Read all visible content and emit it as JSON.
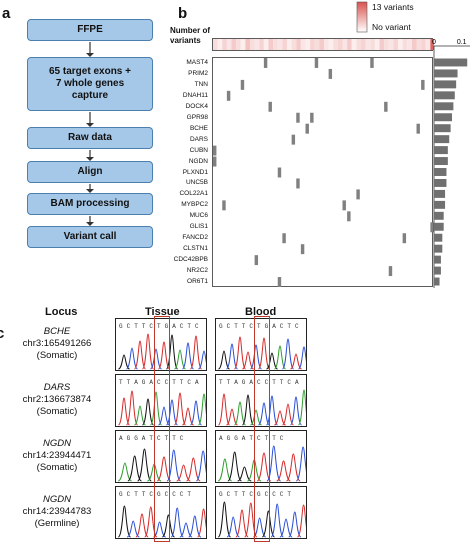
{
  "panels": {
    "a": "a",
    "b": "b",
    "c": "c"
  },
  "flow": {
    "steps": [
      "FFPE",
      "65 target exons +\n7 whole genes\ncapture",
      "Raw data",
      "Align",
      "BAM processing",
      "Variant call"
    ]
  },
  "heatmap_legend": {
    "top_label": "13 variants",
    "bottom_label": "No variant",
    "max_color": "#d9534f",
    "min_color": "#ffffff"
  },
  "number_of_variants_label": "Number of\nvariants",
  "bar_axis": {
    "ticks": [
      "0",
      "0.1"
    ]
  },
  "chart_data": {
    "type": "bar",
    "orientation": "horizontal",
    "categories": [
      "MAST4",
      "PRIM2",
      "TNN",
      "DNAH11",
      "DOCK4",
      "GPR98",
      "BCHE",
      "DARS",
      "CUBN",
      "NGDN",
      "PLXND1",
      "UNC5B",
      "COL22A1",
      "MYBPC2",
      "MUC6",
      "GLIS1",
      "FANCD2",
      "CLSTN1",
      "CDC42BPB",
      "NR2C2",
      "OR6T1"
    ],
    "values": [
      0.12,
      0.085,
      0.08,
      0.075,
      0.07,
      0.065,
      0.06,
      0.055,
      0.05,
      0.05,
      0.045,
      0.045,
      0.04,
      0.04,
      0.035,
      0.035,
      0.03,
      0.03,
      0.025,
      0.025,
      0.02
    ],
    "xlim": [
      0,
      0.13
    ]
  },
  "matrix": {
    "columns": 48,
    "cells": [
      [
        0,
        11
      ],
      [
        0,
        22
      ],
      [
        0,
        34
      ],
      [
        1,
        25
      ],
      [
        2,
        6
      ],
      [
        2,
        45
      ],
      [
        3,
        3
      ],
      [
        4,
        12
      ],
      [
        4,
        37
      ],
      [
        5,
        18
      ],
      [
        5,
        21
      ],
      [
        6,
        20
      ],
      [
        6,
        44
      ],
      [
        7,
        17
      ],
      [
        8,
        0
      ],
      [
        9,
        0
      ],
      [
        10,
        14
      ],
      [
        11,
        18
      ],
      [
        12,
        31
      ],
      [
        13,
        2
      ],
      [
        13,
        28
      ],
      [
        14,
        29
      ],
      [
        15,
        47
      ],
      [
        16,
        15
      ],
      [
        16,
        41
      ],
      [
        17,
        19
      ],
      [
        18,
        9
      ],
      [
        19,
        38
      ],
      [
        20,
        14
      ]
    ]
  },
  "topbar_intensity": [
    0.2,
    0.1,
    0.25,
    0.15,
    0.3,
    0.2,
    0.1,
    0.35,
    0.2,
    0.15,
    0.25,
    0.1,
    0.3,
    0.2,
    0.15,
    0.25,
    0.1,
    0.2,
    0.3,
    0.15,
    0.1,
    0.25,
    0.2,
    0.3,
    0.15,
    0.1,
    0.2,
    0.25,
    0.15,
    0.3,
    0.1,
    0.2,
    0.25,
    0.15,
    0.2,
    0.1,
    0.3,
    0.2,
    0.15,
    0.25,
    0.1,
    0.2,
    0.15,
    0.3,
    0.2,
    0.25,
    0.15,
    0.9
  ],
  "section_c": {
    "headers": {
      "locus": "Locus",
      "tissue": "Tissue",
      "blood": "Blood"
    },
    "rows": [
      {
        "gene": "BCHE",
        "coord": "chr3:165491266",
        "type": "(Somatic)",
        "tissue_seq": "G C T T C T G A C T C",
        "blood_seq": "G C T T C T G A C T C"
      },
      {
        "gene": "DARS",
        "coord": "chr2:136673874",
        "type": "(Somatic)",
        "tissue_seq": "T T A G A C C T T C A",
        "blood_seq": "T T A G A C C T T C A"
      },
      {
        "gene": "NGDN",
        "coord": "chr14:23944471",
        "type": "(Somatic)",
        "tissue_seq": "A G G A T C T T C",
        "blood_seq": "A G G A T C T T C"
      },
      {
        "gene": "NGDN",
        "coord": "chr14:23944783",
        "type": "(Germline)",
        "tissue_seq": "G C T T C G C C C T",
        "blood_seq": "G C T T C G C C C T"
      }
    ]
  }
}
